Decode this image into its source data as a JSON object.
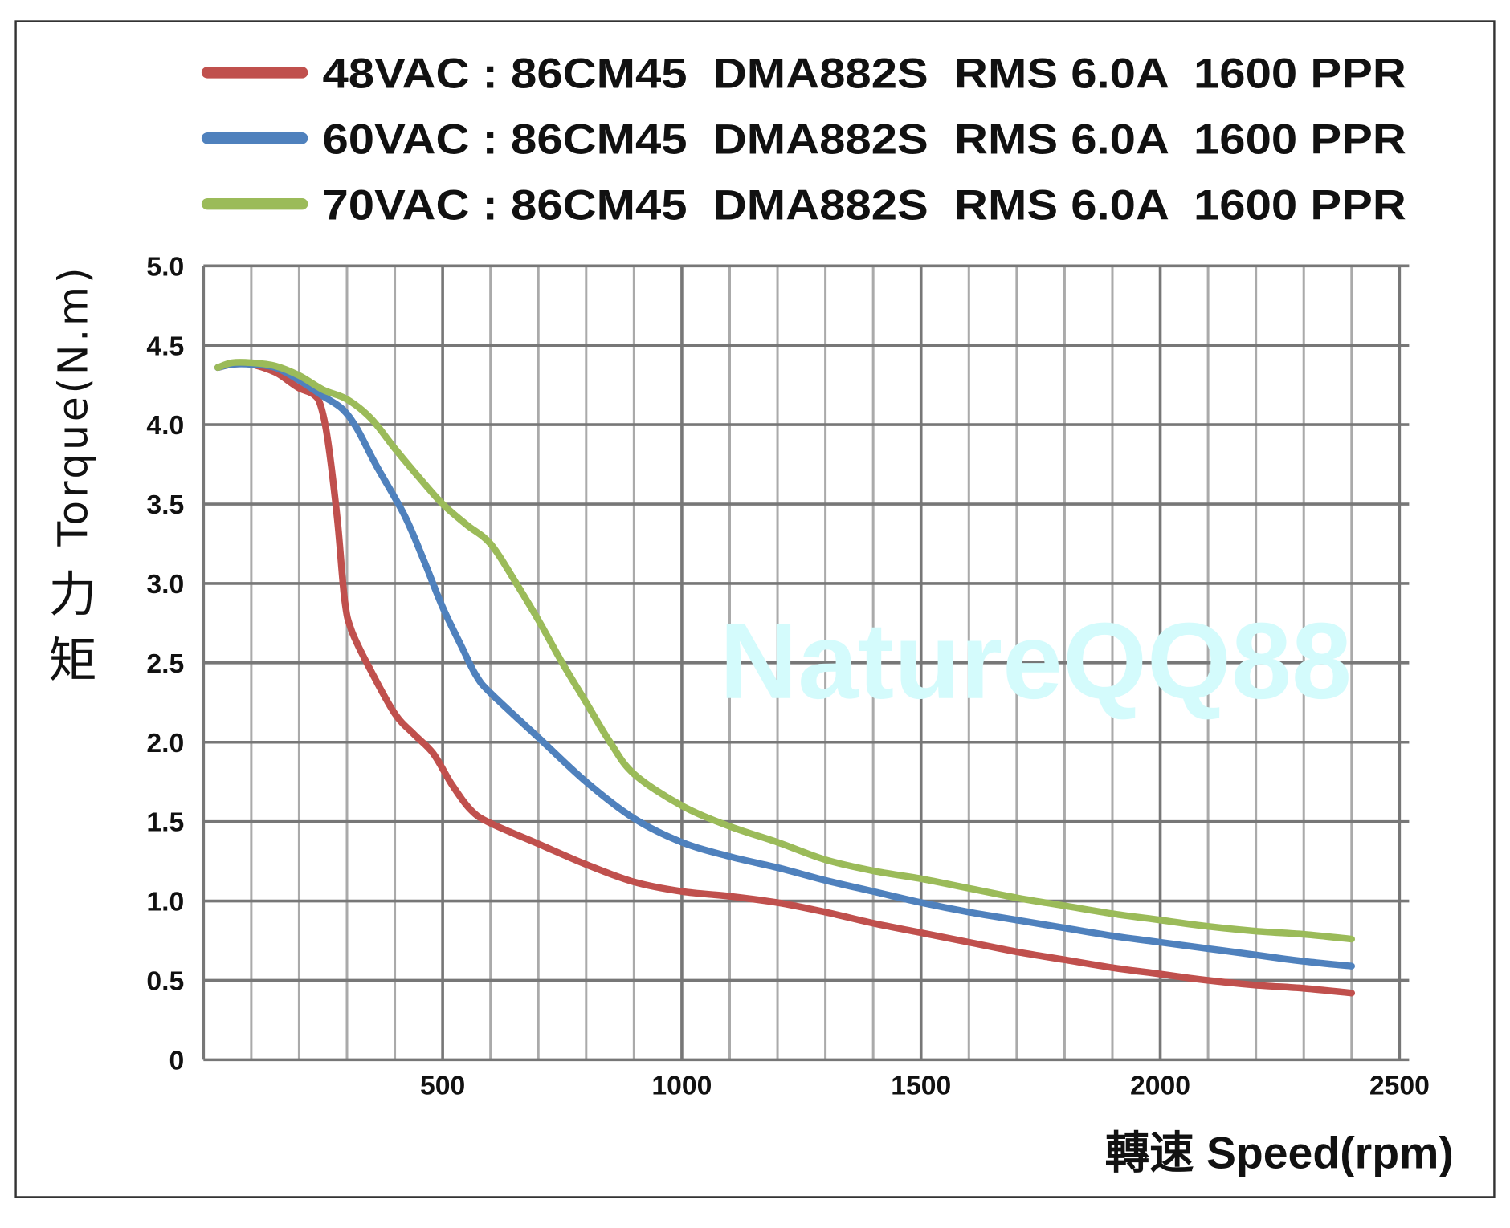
{
  "chart_data": {
    "type": "line",
    "xlabel": "轉速 Speed(rpm)",
    "ylabel_en": "Torque(N.m)",
    "ylabel_zh": [
      "力",
      "矩"
    ],
    "xlim": [
      0,
      2500
    ],
    "ylim": [
      0,
      5.0
    ],
    "grid": true,
    "xticks": [
      "500",
      "1000",
      "1500",
      "2000",
      "2500"
    ],
    "xtick_values": [
      500,
      1000,
      1500,
      2000,
      2500
    ],
    "yticks": [
      "0",
      "0.5",
      "1.0",
      "1.5",
      "2.0",
      "2.5",
      "3.0",
      "3.5",
      "4.0",
      "4.5",
      "5.0"
    ],
    "ytick_values": [
      0,
      0.5,
      1.0,
      1.5,
      2.0,
      2.5,
      3.0,
      3.5,
      4.0,
      4.5,
      5.0
    ],
    "legend_placement": "top",
    "watermark": "NatureQQ88",
    "series": [
      {
        "name": "48VAC : 86CM45  DMA882S  RMS 6.0A  1600 PPR",
        "color": "#c0504d",
        "x": [
          30,
          60,
          100,
          150,
          180,
          200,
          230,
          245,
          260,
          280,
          295,
          310,
          350,
          400,
          440,
          480,
          520,
          560,
          600,
          700,
          800,
          900,
          1000,
          1100,
          1200,
          1300,
          1400,
          1500,
          1600,
          1700,
          1800,
          1900,
          2000,
          2100,
          2200,
          2300,
          2400
        ],
        "y": [
          4.36,
          4.38,
          4.38,
          4.33,
          4.27,
          4.23,
          4.19,
          4.12,
          3.9,
          3.4,
          2.9,
          2.7,
          2.45,
          2.18,
          2.05,
          1.93,
          1.73,
          1.57,
          1.49,
          1.36,
          1.23,
          1.12,
          1.06,
          1.03,
          0.99,
          0.93,
          0.86,
          0.8,
          0.74,
          0.68,
          0.63,
          0.58,
          0.54,
          0.5,
          0.47,
          0.45,
          0.42
        ]
      },
      {
        "name": "60VAC : 86CM45  DMA882S  RMS 6.0A  1600 PPR",
        "color": "#4f81bd",
        "x": [
          30,
          60,
          100,
          150,
          200,
          250,
          290,
          320,
          360,
          420,
          460,
          500,
          540,
          570,
          600,
          700,
          800,
          900,
          1000,
          1100,
          1200,
          1300,
          1400,
          1500,
          1600,
          1700,
          1800,
          1900,
          2000,
          2100,
          2200,
          2300,
          2400
        ],
        "y": [
          4.36,
          4.38,
          4.38,
          4.36,
          4.28,
          4.18,
          4.1,
          3.98,
          3.75,
          3.43,
          3.15,
          2.85,
          2.6,
          2.42,
          2.31,
          2.03,
          1.75,
          1.52,
          1.37,
          1.28,
          1.21,
          1.13,
          1.06,
          0.99,
          0.93,
          0.88,
          0.83,
          0.78,
          0.74,
          0.7,
          0.66,
          0.62,
          0.59
        ]
      },
      {
        "name": "70VAC : 86CM45  DMA882S  RMS 6.0A  1600 PPR",
        "color": "#9bbb59",
        "x": [
          30,
          60,
          100,
          150,
          200,
          250,
          300,
          350,
          400,
          450,
          500,
          550,
          600,
          650,
          700,
          750,
          800,
          850,
          900,
          1000,
          1100,
          1200,
          1300,
          1400,
          1500,
          1600,
          1700,
          1800,
          1900,
          2000,
          2100,
          2200,
          2300,
          2400
        ],
        "y": [
          4.36,
          4.39,
          4.39,
          4.37,
          4.31,
          4.22,
          4.16,
          4.04,
          3.85,
          3.67,
          3.5,
          3.37,
          3.25,
          3.02,
          2.77,
          2.5,
          2.25,
          2.0,
          1.8,
          1.6,
          1.47,
          1.37,
          1.26,
          1.19,
          1.14,
          1.08,
          1.02,
          0.97,
          0.92,
          0.88,
          0.84,
          0.81,
          0.79,
          0.76
        ]
      }
    ]
  }
}
